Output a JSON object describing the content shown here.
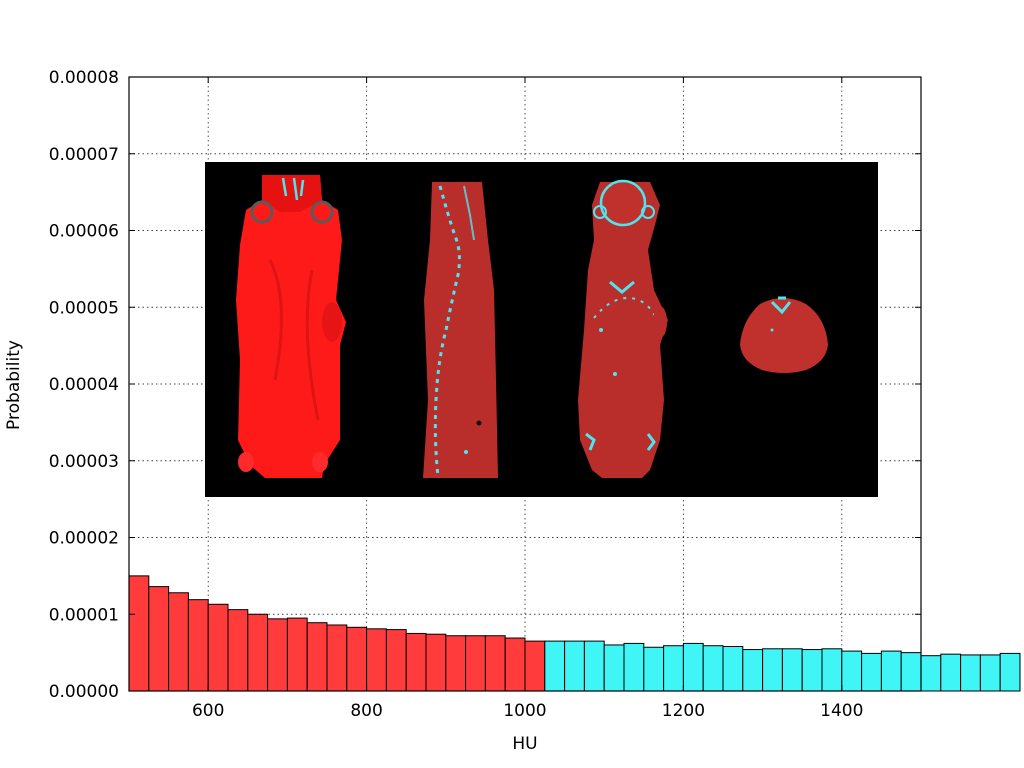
{
  "chart_data": {
    "type": "bar",
    "title": "",
    "xlabel": "HU",
    "ylabel": "Probability",
    "xlim": [
      500,
      1500
    ],
    "ylim": [
      0,
      8e-05
    ],
    "grid": true,
    "x_ticks": [
      600,
      800,
      1000,
      1200,
      1400
    ],
    "y_ticks": [
      "0.00000",
      "0.00001",
      "0.00002",
      "0.00003",
      "0.00004",
      "0.00005",
      "0.00006",
      "0.00007",
      "0.00008"
    ],
    "bin_start": 500,
    "bin_width": 25,
    "threshold": 1025,
    "colors": {
      "below_threshold": "#ff3b3b",
      "above_threshold": "#3ff5f5",
      "inset_background": "#000000",
      "tissue": "#c8302c",
      "bone": "#4ee6ee"
    },
    "values": [
      1.5e-05,
      1.36e-05,
      1.28e-05,
      1.19e-05,
      1.13e-05,
      1.06e-05,
      1e-05,
      9.4e-06,
      9.5e-06,
      8.9e-06,
      8.6e-06,
      8.3e-06,
      8.1e-06,
      8e-06,
      7.5e-06,
      7.4e-06,
      7.2e-06,
      7.2e-06,
      7.2e-06,
      6.9e-06,
      6.5e-06,
      6.5e-06,
      6.5e-06,
      6.5e-06,
      6e-06,
      6.2e-06,
      5.7e-06,
      5.9e-06,
      6.2e-06,
      5.9e-06,
      5.8e-06,
      5.4e-06,
      5.5e-06,
      5.5e-06,
      5.4e-06,
      5.5e-06,
      5.2e-06,
      4.9e-06,
      5.2e-06,
      5e-06,
      4.6e-06,
      4.8e-06,
      4.7e-06,
      4.7e-06,
      4.9e-06
    ]
  },
  "inset": {
    "panels": [
      {
        "icon": "ct-volume-rendering-dorsal-icon"
      },
      {
        "icon": "ct-sagittal-slice-icon"
      },
      {
        "icon": "ct-coronal-slice-icon"
      },
      {
        "icon": "ct-axial-slice-icon"
      }
    ]
  }
}
